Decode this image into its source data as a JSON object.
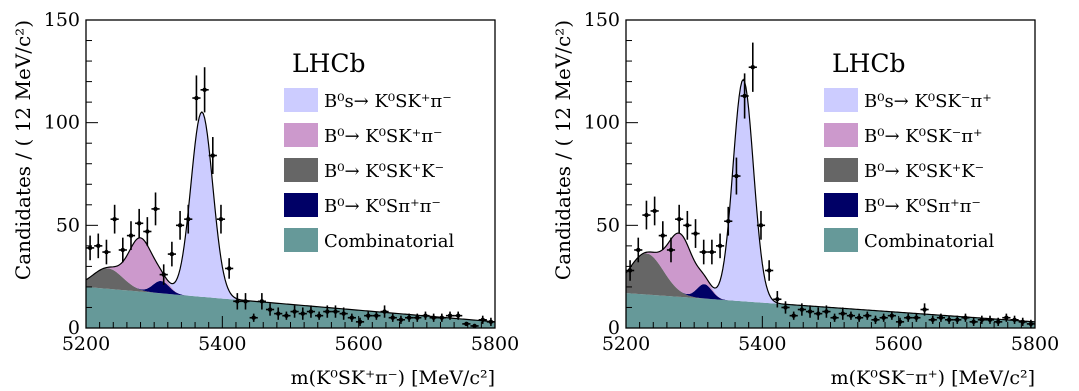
{
  "figure": {
    "experiment_label": "LHCb"
  },
  "chart_data": [
    {
      "type": "line",
      "experiment": "LHCb",
      "ylabel": "Candidates / ( 12 MeV/c²)",
      "xlabel": "m(K⁰SK⁺π⁻) [MeV/c²]",
      "xlim": [
        5200,
        5800
      ],
      "ylim": [
        0,
        150
      ],
      "xticks": [
        "5200",
        "5400",
        "5600",
        "5800"
      ],
      "yticks": [
        "0",
        "50",
        "100",
        "150"
      ],
      "legend_position": "top-right",
      "legend": [
        {
          "label": "B⁰s→ K⁰SK⁺π⁻",
          "color": "#ccccff"
        },
        {
          "label": "B⁰→ K⁰SK⁺π⁻",
          "color": "#cc99cc"
        },
        {
          "label": "B⁰→ K⁰SK⁺K⁻",
          "color": "#666666"
        },
        {
          "label": "B⁰→ K⁰Sπ⁺π⁻",
          "color": "#000066"
        },
        {
          "label": "Combinatorial",
          "color": "#669999"
        }
      ],
      "components": {
        "combinatorial": {
          "at5200": 20,
          "at5800": 3
        },
        "b0_kskk": {
          "mean": 5232,
          "sigma": 22,
          "amp": 10
        },
        "b0_kspipi": {
          "mean": 5310,
          "sigma": 12,
          "amp": 6
        },
        "b0_kskpi": {
          "mean": 5280,
          "sigma": 17,
          "amp": 25
        },
        "bs_kskpi": {
          "mean": 5370,
          "sigma": 16,
          "amp": 90
        }
      },
      "series": [
        {
          "values_x": [
            5206,
            5218,
            5230,
            5242,
            5254,
            5266,
            5278,
            5290,
            5302,
            5314,
            5326,
            5338,
            5350,
            5362,
            5374,
            5386,
            5398,
            5410,
            5422,
            5434,
            5446,
            5458,
            5470,
            5482,
            5494,
            5506,
            5518,
            5530,
            5542,
            5554,
            5566,
            5578,
            5590,
            5602,
            5614,
            5626,
            5638,
            5650,
            5662,
            5674,
            5686,
            5698,
            5710,
            5722,
            5734,
            5746,
            5758,
            5770,
            5782,
            5794
          ],
          "values_y": [
            39,
            40,
            37,
            53,
            38,
            45,
            51,
            47,
            58,
            26,
            36,
            50,
            53,
            112,
            116,
            84,
            53,
            29,
            13,
            13,
            5,
            13,
            9,
            7,
            6,
            8,
            7,
            8,
            6,
            8,
            8,
            7,
            5,
            3,
            6,
            6,
            8,
            5,
            4,
            5,
            5,
            6,
            5,
            5,
            6,
            6,
            2,
            1,
            4,
            3
          ],
          "errors": [
            6,
            6,
            6,
            7,
            6,
            7,
            7,
            7,
            8,
            5,
            6,
            7,
            7,
            11,
            11,
            9,
            7,
            5,
            4,
            4,
            2,
            4,
            3,
            3,
            2,
            3,
            3,
            3,
            2,
            3,
            3,
            3,
            2,
            2,
            2,
            2,
            3,
            2,
            2,
            2,
            2,
            2,
            2,
            2,
            2,
            2,
            1,
            1,
            2,
            2
          ]
        }
      ]
    },
    {
      "type": "line",
      "experiment": "LHCb",
      "ylabel": "Candidates / ( 12 MeV/c²)",
      "xlabel": "m(K⁰SK⁻π⁺) [MeV/c²]",
      "xlim": [
        5200,
        5800
      ],
      "ylim": [
        0,
        150
      ],
      "xticks": [
        "5200",
        "5400",
        "5600",
        "5800"
      ],
      "yticks": [
        "0",
        "50",
        "100",
        "150"
      ],
      "legend_position": "top-right",
      "legend": [
        {
          "label": "B⁰s→ K⁰SK⁻π⁺",
          "color": "#ccccff"
        },
        {
          "label": "B⁰→ K⁰SK⁻π⁺",
          "color": "#cc99cc"
        },
        {
          "label": "B⁰→ K⁰SK⁺K⁻",
          "color": "#666666"
        },
        {
          "label": "B⁰→ K⁰Sπ⁺π⁻",
          "color": "#000066"
        },
        {
          "label": "Combinatorial",
          "color": "#669999"
        }
      ],
      "components": {
        "combinatorial": {
          "at5200": 17,
          "at5800": 3
        },
        "b0_kskk": {
          "mean": 5230,
          "sigma": 25,
          "amp": 20
        },
        "b0_kspipi": {
          "mean": 5315,
          "sigma": 11,
          "amp": 7
        },
        "b0_kskpi": {
          "mean": 5280,
          "sigma": 18,
          "amp": 28
        },
        "bs_kskpi": {
          "mean": 5372,
          "sigma": 15,
          "amp": 108
        }
      },
      "series": [
        {
          "values_x": [
            5206,
            5218,
            5230,
            5242,
            5254,
            5266,
            5278,
            5290,
            5302,
            5314,
            5326,
            5338,
            5350,
            5362,
            5374,
            5386,
            5398,
            5410,
            5422,
            5434,
            5446,
            5458,
            5470,
            5482,
            5494,
            5506,
            5518,
            5530,
            5542,
            5554,
            5566,
            5578,
            5590,
            5602,
            5614,
            5626,
            5638,
            5650,
            5662,
            5674,
            5686,
            5698,
            5710,
            5722,
            5734,
            5746,
            5758,
            5770,
            5782,
            5794
          ],
          "values_y": [
            28,
            38,
            55,
            57,
            45,
            38,
            53,
            50,
            46,
            37,
            37,
            40,
            52,
            74,
            113,
            127,
            50,
            28,
            14,
            10,
            6,
            9,
            8,
            7,
            8,
            5,
            7,
            6,
            5,
            6,
            4,
            5,
            6,
            3,
            5,
            5,
            9,
            4,
            5,
            4,
            4,
            5,
            3,
            4,
            4,
            3,
            5,
            4,
            3,
            2
          ],
          "errors": [
            5,
            6,
            7,
            7,
            7,
            6,
            7,
            7,
            7,
            6,
            6,
            6,
            7,
            9,
            11,
            12,
            7,
            5,
            4,
            3,
            2,
            3,
            3,
            3,
            3,
            2,
            3,
            2,
            2,
            2,
            2,
            2,
            2,
            2,
            2,
            2,
            3,
            2,
            2,
            2,
            2,
            2,
            2,
            2,
            2,
            2,
            2,
            2,
            2,
            2
          ]
        }
      ]
    }
  ]
}
